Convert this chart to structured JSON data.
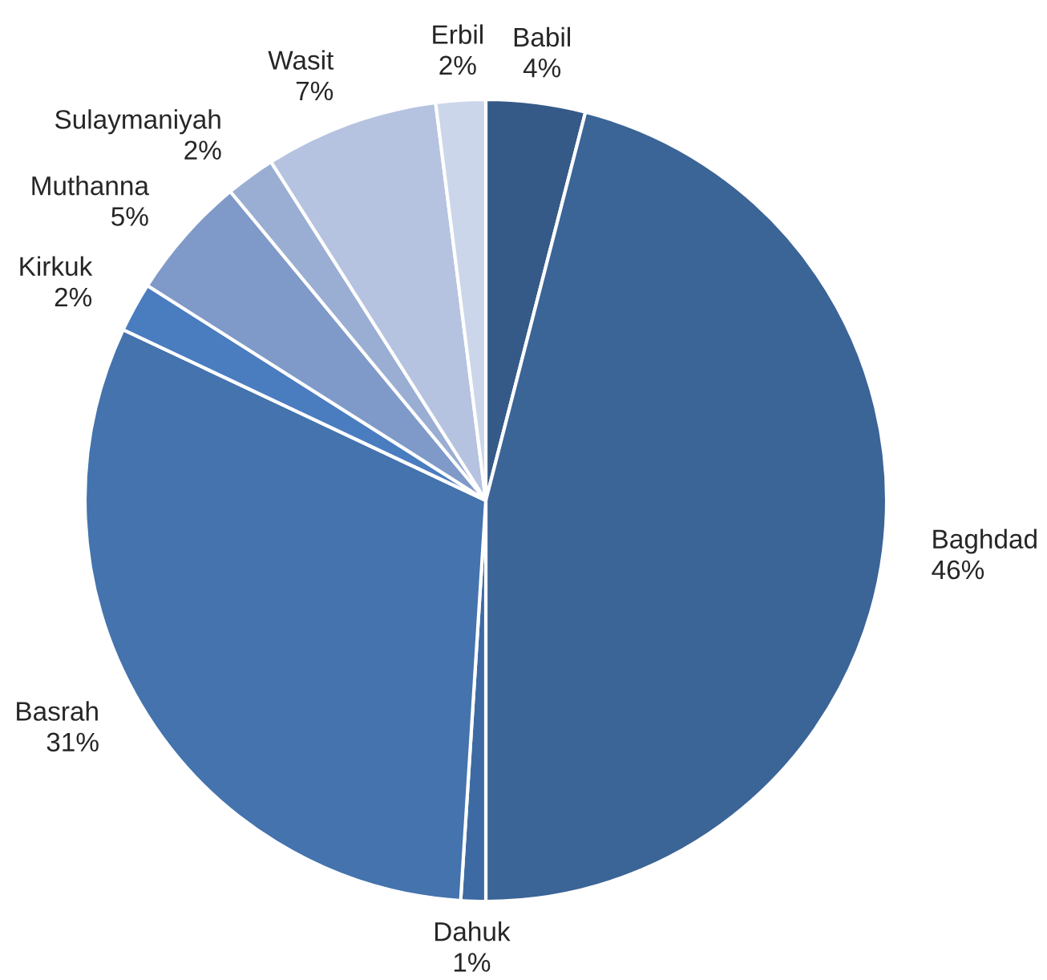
{
  "chart_data": {
    "type": "pie",
    "categories": [
      "Babil",
      "Baghdad",
      "Dahuk",
      "Basrah",
      "Kirkuk",
      "Muthanna",
      "Sulaymaniyah",
      "Wasit",
      "Erbil"
    ],
    "values": [
      4,
      46,
      1,
      31,
      2,
      5,
      2,
      7,
      2
    ],
    "value_labels": [
      "4%",
      "46%",
      "1%",
      "31%",
      "2%",
      "5%",
      "2%",
      "7%",
      "2%"
    ],
    "colors": [
      "#355a88",
      "#3b6497",
      "#3e6aa3",
      "#4473ad",
      "#4a7cc0",
      "#7f9ac8",
      "#9aaed3",
      "#b5c3e0",
      "#ccd6ea"
    ],
    "legend": false
  }
}
